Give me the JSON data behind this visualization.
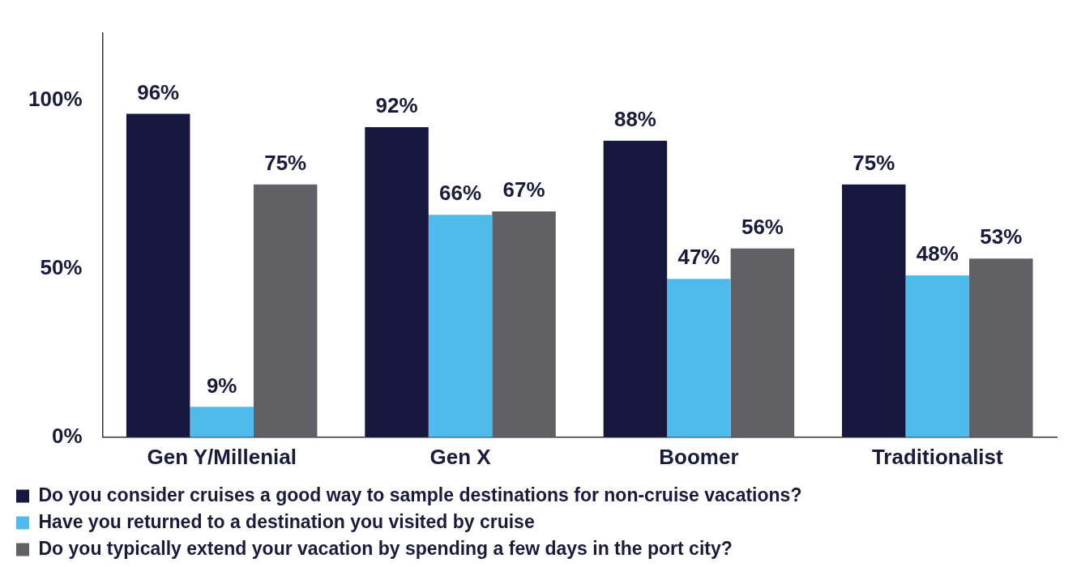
{
  "chart_data": {
    "type": "bar",
    "categories": [
      "Gen Y/Millenial",
      "Gen X",
      "Boomer",
      "Traditionalist"
    ],
    "series": [
      {
        "name": "Do you consider cruises a good way to sample destinations for non-cruise vacations?",
        "color": "#16163f",
        "values": [
          96,
          92,
          88,
          75
        ],
        "value_labels": [
          "96%",
          "92%",
          "88%",
          "75%"
        ]
      },
      {
        "name": "Have you returned to a destination you visited by cruise",
        "color": "#4fbbed",
        "values": [
          9,
          66,
          47,
          48
        ],
        "value_labels": [
          "9%",
          "66%",
          "47%",
          "48%"
        ]
      },
      {
        "name": "Do you typically extend your vacation by spending a few days in the port city?",
        "color": "#616165",
        "values": [
          75,
          67,
          56,
          53
        ],
        "value_labels": [
          "75%",
          "67%",
          "56%",
          "53%"
        ]
      }
    ],
    "ylim": [
      0,
      120
    ],
    "yticks": [
      {
        "value": 0,
        "label": "0%"
      },
      {
        "value": 50,
        "label": "50%"
      },
      {
        "value": 100,
        "label": "100%"
      }
    ],
    "grid": false,
    "legend": "bottom"
  }
}
